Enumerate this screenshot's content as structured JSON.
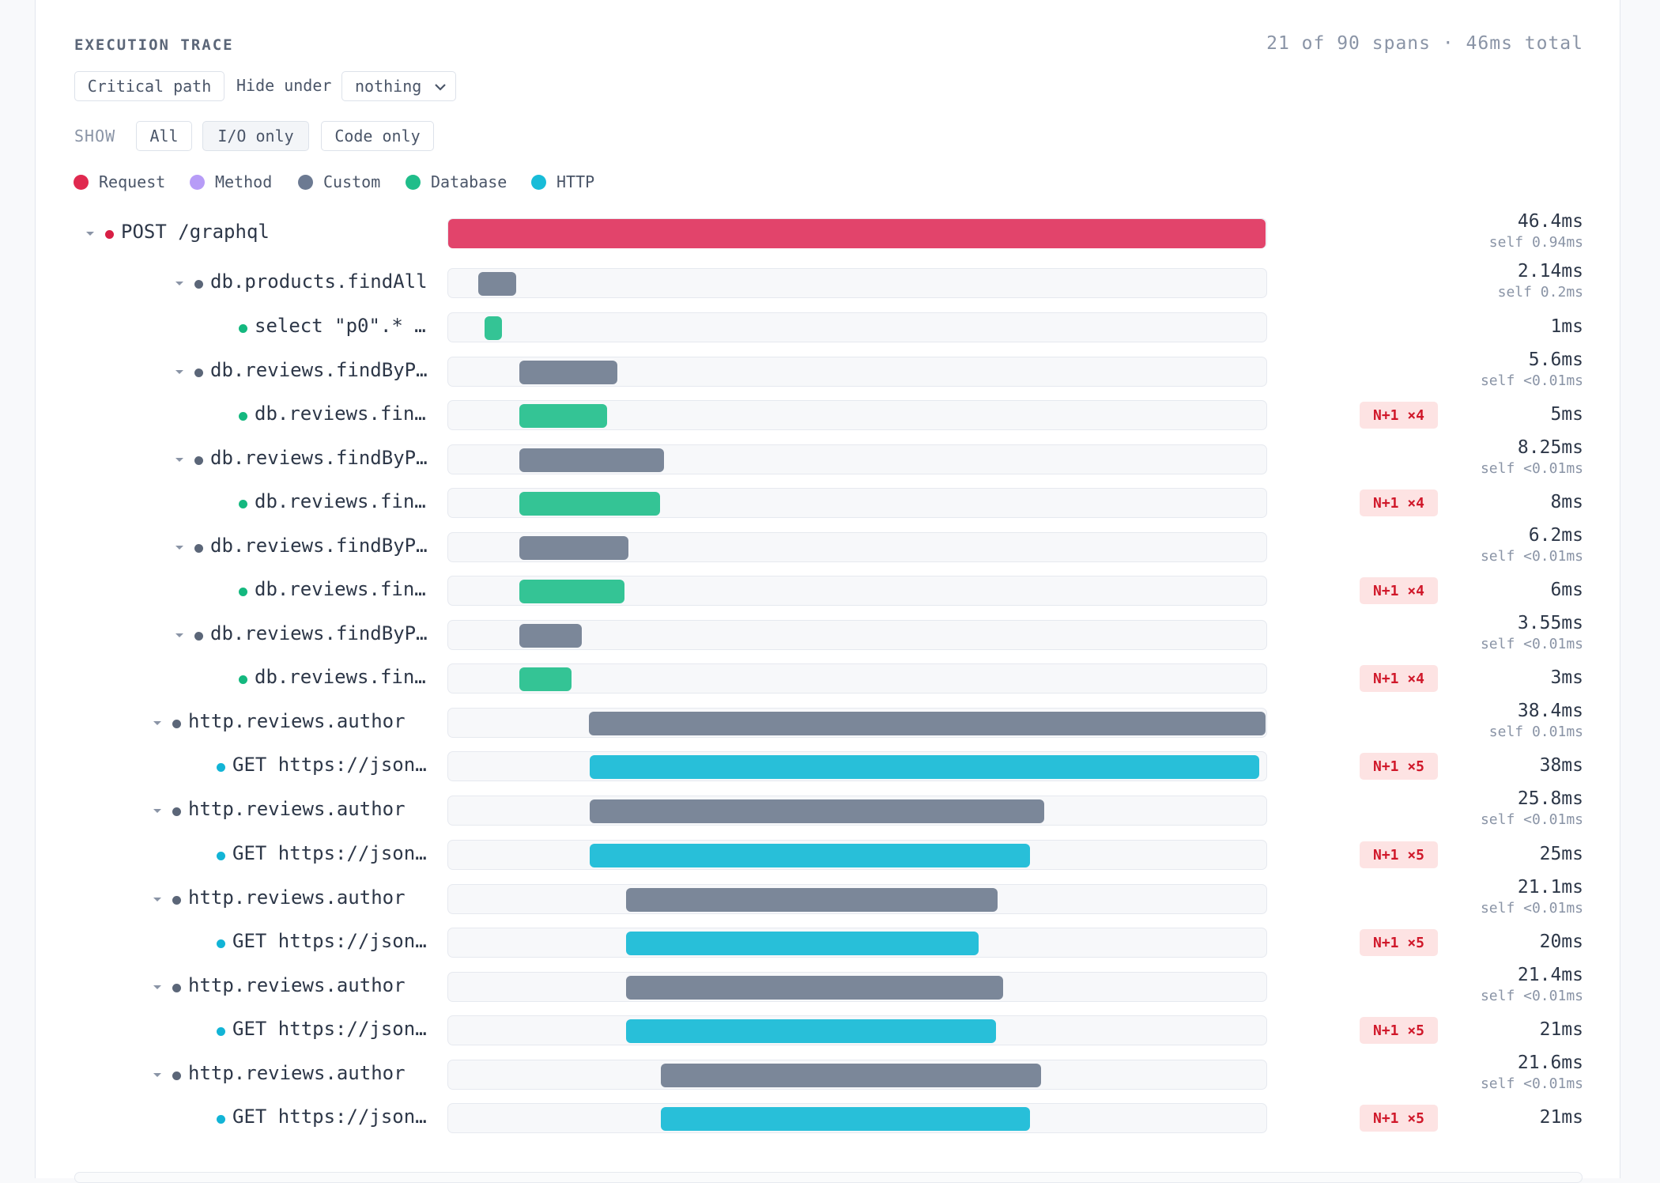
{
  "header": {
    "title": "EXECUTION TRACE",
    "summary": "21 of 90 spans · 46ms total"
  },
  "toolbar": {
    "critical_path_label": "Critical path",
    "hide_under_label": "Hide under",
    "hide_under_value": "nothing",
    "show_label": "SHOW",
    "show_options": [
      "All",
      "I/O only",
      "Code only"
    ],
    "show_selected": "I/O only"
  },
  "legend": [
    {
      "label": "Request",
      "color": "#e0294f"
    },
    {
      "label": "Method",
      "color": "#b79cf7"
    },
    {
      "label": "Custom",
      "color": "#6c7a92"
    },
    {
      "label": "Database",
      "color": "#20bd8a"
    },
    {
      "label": "HTTP",
      "color": "#18bcd8"
    }
  ],
  "trace_scale_ms": 46.4,
  "spans": [
    {
      "name": "POST /graphql",
      "kind": "request",
      "depth": 0,
      "collapsible": true,
      "start_ms": 0,
      "duration_ms": 46.4,
      "duration": "46.4ms",
      "self": "self 0.94ms",
      "badge": ""
    },
    {
      "name": "db.products.findAll",
      "kind": "custom",
      "depth": 2,
      "collapsible": true,
      "start_ms": 1.7,
      "duration_ms": 2.14,
      "duration": "2.14ms",
      "self": "self 0.2ms",
      "badge": ""
    },
    {
      "name": "select \"p0\".* …",
      "kind": "database",
      "depth": 3,
      "collapsible": false,
      "start_ms": 2.07,
      "duration_ms": 1,
      "duration": "1ms",
      "self": "",
      "badge": ""
    },
    {
      "name": "db.reviews.findByP…",
      "kind": "custom",
      "depth": 2,
      "collapsible": true,
      "start_ms": 4.02,
      "duration_ms": 5.6,
      "duration": "5.6ms",
      "self": "self <0.01ms",
      "badge": ""
    },
    {
      "name": "db.reviews.fin…",
      "kind": "database",
      "depth": 3,
      "collapsible": false,
      "start_ms": 4.02,
      "duration_ms": 5,
      "duration": "5ms",
      "self": "",
      "badge": "N+1 ×4"
    },
    {
      "name": "db.reviews.findByP…",
      "kind": "custom",
      "depth": 2,
      "collapsible": true,
      "start_ms": 4.02,
      "duration_ms": 8.25,
      "duration": "8.25ms",
      "self": "self <0.01ms",
      "badge": ""
    },
    {
      "name": "db.reviews.fin…",
      "kind": "database",
      "depth": 3,
      "collapsible": false,
      "start_ms": 4.02,
      "duration_ms": 8,
      "duration": "8ms",
      "self": "",
      "badge": "N+1 ×4"
    },
    {
      "name": "db.reviews.findByP…",
      "kind": "custom",
      "depth": 2,
      "collapsible": true,
      "start_ms": 4.02,
      "duration_ms": 6.2,
      "duration": "6.2ms",
      "self": "self <0.01ms",
      "badge": ""
    },
    {
      "name": "db.reviews.fin…",
      "kind": "database",
      "depth": 3,
      "collapsible": false,
      "start_ms": 4.02,
      "duration_ms": 6,
      "duration": "6ms",
      "self": "",
      "badge": "N+1 ×4"
    },
    {
      "name": "db.reviews.findByP…",
      "kind": "custom",
      "depth": 2,
      "collapsible": true,
      "start_ms": 4.02,
      "duration_ms": 3.55,
      "duration": "3.55ms",
      "self": "self <0.01ms",
      "badge": ""
    },
    {
      "name": "db.reviews.fin…",
      "kind": "database",
      "depth": 3,
      "collapsible": false,
      "start_ms": 4.02,
      "duration_ms": 3,
      "duration": "3ms",
      "self": "",
      "badge": "N+1 ×4"
    },
    {
      "name": "http.reviews.author",
      "kind": "custom",
      "depth": 1,
      "collapsible": true,
      "start_ms": 8.0,
      "duration_ms": 38.4,
      "duration": "38.4ms",
      "self": "self 0.01ms",
      "badge": ""
    },
    {
      "name": "GET https://json…",
      "kind": "http",
      "depth": 2,
      "collapsible": false,
      "start_ms": 8.05,
      "duration_ms": 38,
      "duration": "38ms",
      "self": "",
      "badge": "N+1 ×5"
    },
    {
      "name": "http.reviews.author",
      "kind": "custom",
      "depth": 1,
      "collapsible": true,
      "start_ms": 8.05,
      "duration_ms": 25.8,
      "duration": "25.8ms",
      "self": "self <0.01ms",
      "badge": ""
    },
    {
      "name": "GET https://json…",
      "kind": "http",
      "depth": 2,
      "collapsible": false,
      "start_ms": 8.05,
      "duration_ms": 25,
      "duration": "25ms",
      "self": "",
      "badge": "N+1 ×5"
    },
    {
      "name": "http.reviews.author",
      "kind": "custom",
      "depth": 1,
      "collapsible": true,
      "start_ms": 10.1,
      "duration_ms": 21.1,
      "duration": "21.1ms",
      "self": "self <0.01ms",
      "badge": ""
    },
    {
      "name": "GET https://json…",
      "kind": "http",
      "depth": 2,
      "collapsible": false,
      "start_ms": 10.1,
      "duration_ms": 20,
      "duration": "20ms",
      "self": "",
      "badge": "N+1 ×5"
    },
    {
      "name": "http.reviews.author",
      "kind": "custom",
      "depth": 1,
      "collapsible": true,
      "start_ms": 10.1,
      "duration_ms": 21.4,
      "duration": "21.4ms",
      "self": "self <0.01ms",
      "badge": ""
    },
    {
      "name": "GET https://json…",
      "kind": "http",
      "depth": 2,
      "collapsible": false,
      "start_ms": 10.1,
      "duration_ms": 21,
      "duration": "21ms",
      "self": "",
      "badge": "N+1 ×5"
    },
    {
      "name": "http.reviews.author",
      "kind": "custom",
      "depth": 1,
      "collapsible": true,
      "start_ms": 12.05,
      "duration_ms": 21.6,
      "duration": "21.6ms",
      "self": "self <0.01ms",
      "badge": ""
    },
    {
      "name": "GET https://json…",
      "kind": "http",
      "depth": 2,
      "collapsible": false,
      "start_ms": 12.05,
      "duration_ms": 21,
      "duration": "21ms",
      "self": "",
      "badge": "N+1 ×5"
    }
  ],
  "colors": {
    "request": "#e2446b",
    "custom": "#7b8799",
    "database": "#34c495",
    "http": "#28bfd9",
    "request_dot": "#d81f45",
    "custom_dot": "#5b6678",
    "database_dot": "#14b87f",
    "http_dot": "#12b4d6"
  }
}
